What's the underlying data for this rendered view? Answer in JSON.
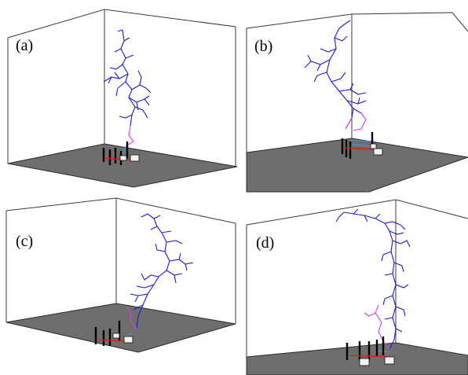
{
  "panels": [
    {
      "id": "a",
      "label": "(a)"
    },
    {
      "id": "b",
      "label": "(b)"
    },
    {
      "id": "c",
      "label": "(c)"
    },
    {
      "id": "d",
      "label": "(d)"
    }
  ],
  "colors": {
    "frame": "#3a3a3a",
    "ground": "#6e6e6e",
    "ground_edge": "#2a2a2a",
    "leader": "#1a1ad8",
    "upper_segment": "#e23ae2",
    "rod": "#000000",
    "ground_current": "#e21b1b",
    "box_fill": "#f2f2f2"
  }
}
